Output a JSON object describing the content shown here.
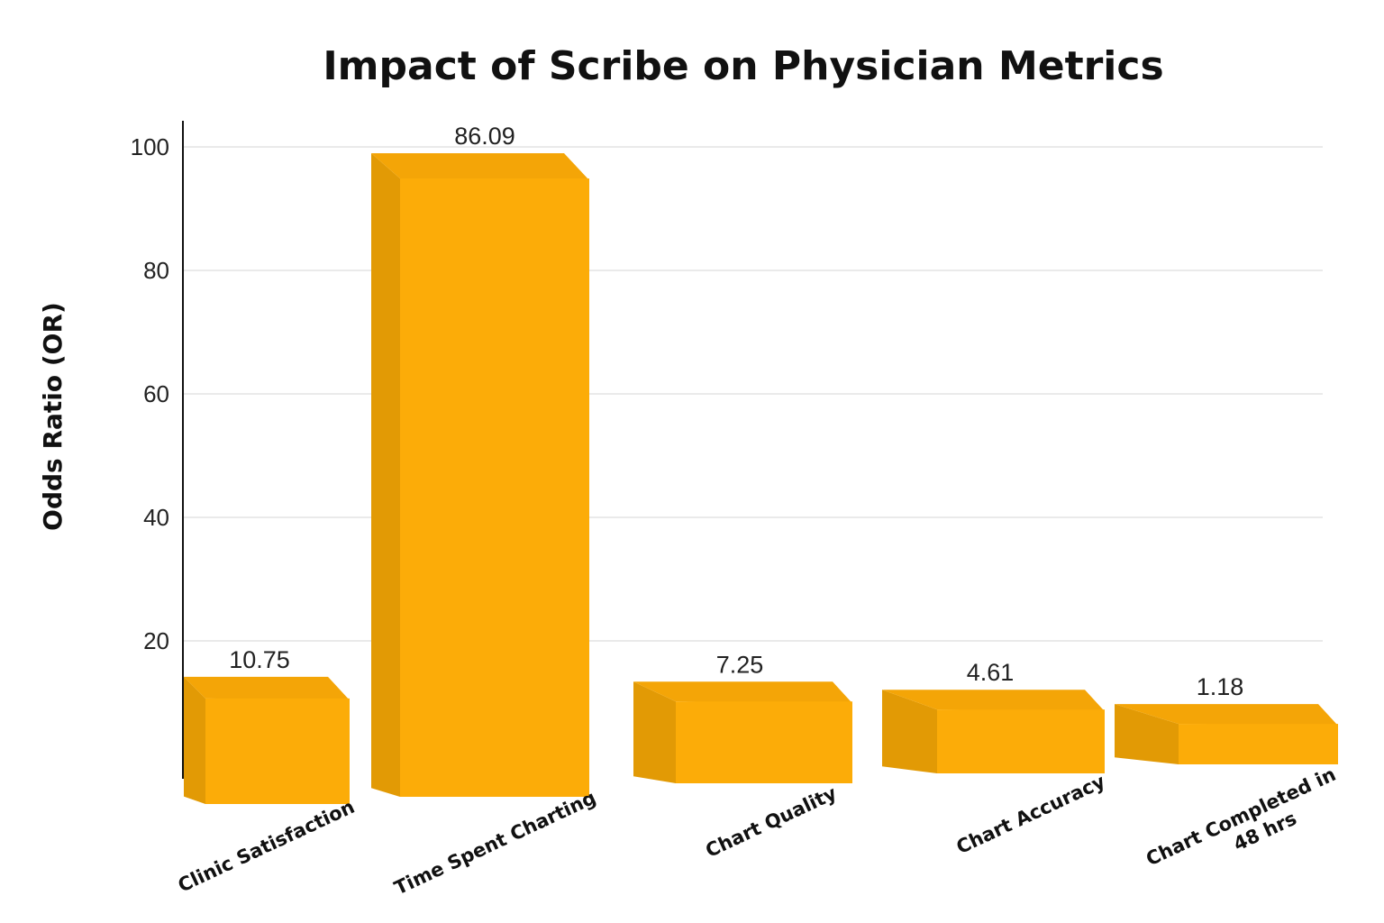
{
  "chart_data": {
    "type": "bar",
    "title": "Impact of Scribe on Physician Metrics",
    "xlabel": "",
    "ylabel": "Odds Ratio (OR)",
    "ylim": [
      0,
      110
    ],
    "yticks": [
      20,
      40,
      60,
      80,
      100
    ],
    "grid": true,
    "legend": "none",
    "categories": [
      "Clinic Satisfaction",
      "Time Spent Charting",
      "Chart Quality",
      "Chart Accuracy",
      "Chart Completed in 48 hrs"
    ],
    "values": [
      10.75,
      86.09,
      7.25,
      4.61,
      1.18
    ],
    "data_labels": [
      "10.75",
      "86.09",
      "7.25",
      "4.61",
      "1.18"
    ],
    "colors": {
      "bar_front": "#FCAC08",
      "bar_side": "#E29A05",
      "bar_top": "#F4A507",
      "text": "#111111"
    }
  }
}
